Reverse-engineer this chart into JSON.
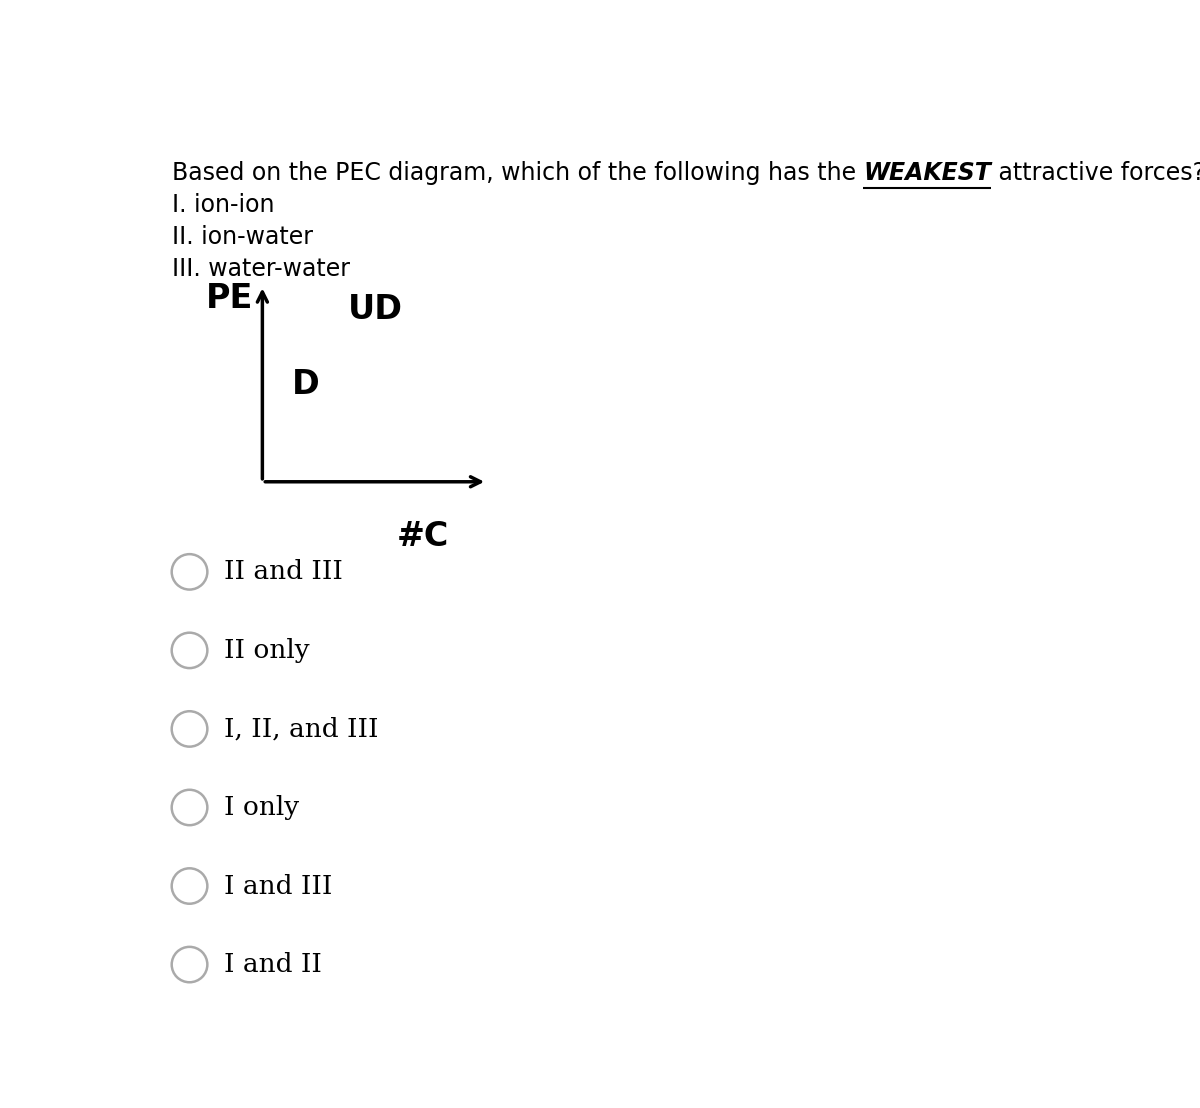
{
  "bg_color": "#ffffff",
  "question_pre": "Based on the PEC diagram, which of the following has the ",
  "question_weakest": "WEAKEST",
  "question_post": " attractive forces?",
  "question_line2": "I. ion-ion",
  "question_line3": "II. ion-water",
  "question_line4": "III. water-water",
  "diagram_pe_label": "PE",
  "diagram_ud_label": "UD",
  "diagram_d_label": "D",
  "diagram_xaxis_label": "#C",
  "choices": [
    "II and III",
    "II only",
    "I, II, and III",
    "I only",
    "I and III",
    "I and II"
  ],
  "circle_color": "#aaaaaa",
  "text_color": "#000000",
  "title_fontsize": 17,
  "body_fontsize": 17,
  "diagram_label_fontsize": 24,
  "choice_fontsize": 19
}
